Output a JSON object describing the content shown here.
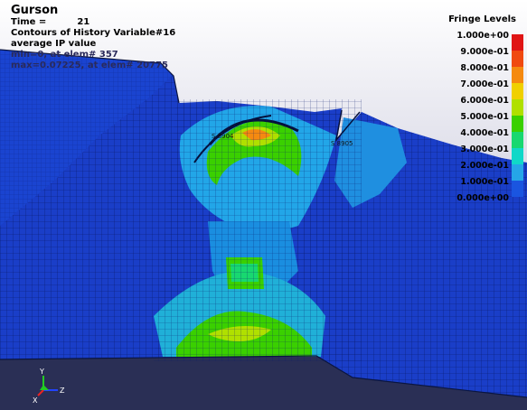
{
  "header": {
    "title": "Gurson",
    "time_label": "Time =",
    "time_value": "21",
    "variable": "Contours of History Variable#16",
    "average": "average IP value",
    "min_line": "min=0, at elem# 357",
    "max_line": "max=0.07225, at elem# 20775"
  },
  "legend": {
    "title": "Fringe Levels",
    "levels": [
      {
        "label": "1.000e+00",
        "color": "#e01515"
      },
      {
        "label": "9.000e-01",
        "color": "#f04a10"
      },
      {
        "label": "8.000e-01",
        "color": "#f58a10"
      },
      {
        "label": "7.000e-01",
        "color": "#f0d000"
      },
      {
        "label": "6.000e-01",
        "color": "#b0e000"
      },
      {
        "label": "5.000e-01",
        "color": "#3ad000"
      },
      {
        "label": "4.000e-01",
        "color": "#18d870"
      },
      {
        "label": "3.000e-01",
        "color": "#10d8c8"
      },
      {
        "label": "2.000e-01",
        "color": "#25a6e8"
      },
      {
        "label": "1.000e-01",
        "color": "#1a55e0"
      },
      {
        "label": "0.000e+00",
        "color": "#1010c8"
      }
    ]
  },
  "element_labels": [
    "S 8904",
    "S 8905"
  ],
  "triad": {
    "y": "Y",
    "z": "Z",
    "x": "X"
  }
}
